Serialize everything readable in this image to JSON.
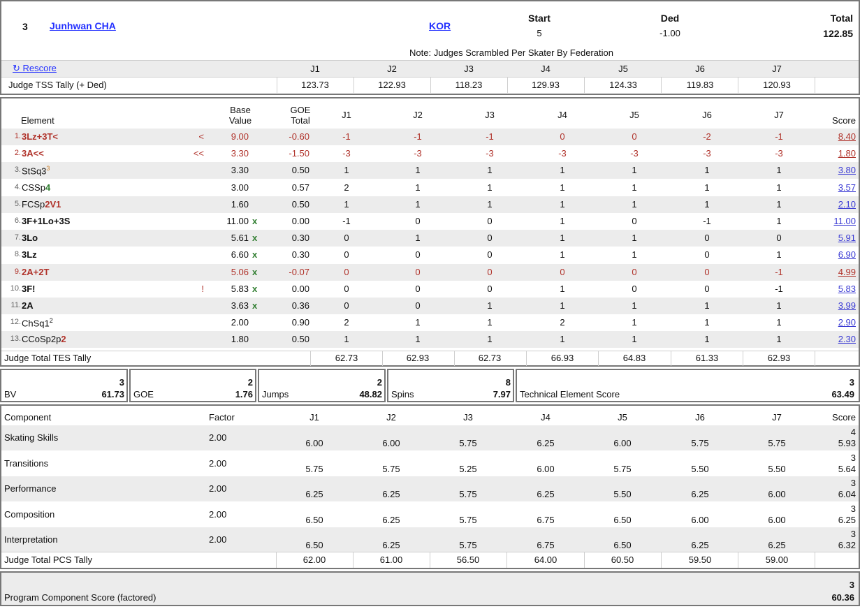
{
  "header": {
    "rank": "3",
    "name": "Junhwan CHA",
    "nation": "KOR",
    "start_label": "Start",
    "start_value": "5",
    "ded_label": "Ded",
    "ded_value": "-1.00",
    "total_label": "Total",
    "total_value": "122.85",
    "note": "Note: Judges Scrambled Per Skater By Federation",
    "rescore": "↻ Rescore",
    "judges": [
      "J1",
      "J2",
      "J3",
      "J4",
      "J5",
      "J6",
      "J7"
    ],
    "tss_label": "Judge TSS Tally (+ Ded)",
    "tss": [
      "123.73",
      "122.93",
      "118.23",
      "129.93",
      "124.33",
      "119.83",
      "120.93"
    ]
  },
  "elements": {
    "col_element": "Element",
    "col_base": "Base\nValue",
    "col_goe": "GOE\nTotal",
    "col_score": "Score",
    "judges": [
      "J1",
      "J2",
      "J3",
      "J4",
      "J5",
      "J6",
      "J7"
    ],
    "rows": [
      {
        "num": "1.",
        "name": "3Lz+3T<",
        "flag": "<",
        "bv": "9.00",
        "x": "",
        "goe": "-0.60",
        "j": [
          "-1",
          "-1",
          "-1",
          "0",
          "0",
          "-2",
          "-1"
        ],
        "score": "8.40",
        "tone": "red"
      },
      {
        "num": "2.",
        "name": "3A<<",
        "flag": "<<",
        "bv": "3.30",
        "x": "",
        "goe": "-1.50",
        "j": [
          "-3",
          "-3",
          "-3",
          "-3",
          "-3",
          "-3",
          "-3"
        ],
        "score": "1.80",
        "tone": "red"
      },
      {
        "num": "3.",
        "name": "StSq3",
        "sup": "3",
        "flag": "",
        "bv": "3.30",
        "x": "",
        "goe": "0.50",
        "j": [
          "1",
          "1",
          "1",
          "1",
          "1",
          "1",
          "1"
        ],
        "score": "3.80",
        "tone": "normal"
      },
      {
        "num": "4.",
        "name": "CSSp",
        "lvl": "4",
        "flag": "",
        "bv": "3.00",
        "x": "",
        "goe": "0.57",
        "j": [
          "2",
          "1",
          "1",
          "1",
          "1",
          "1",
          "1"
        ],
        "score": "3.57",
        "tone": "normal"
      },
      {
        "num": "5.",
        "name": "FCSp",
        "lvl": "2V1",
        "flag": "",
        "bv": "1.60",
        "x": "",
        "goe": "0.50",
        "j": [
          "1",
          "1",
          "1",
          "1",
          "1",
          "1",
          "1"
        ],
        "score": "2.10",
        "tone": "normal"
      },
      {
        "num": "6.",
        "name": "3F+1Lo+3S",
        "flag": "",
        "bv": "11.00",
        "x": "x",
        "goe": "0.00",
        "j": [
          "-1",
          "0",
          "0",
          "1",
          "0",
          "-1",
          "1"
        ],
        "score": "11.00",
        "tone": "bold"
      },
      {
        "num": "7.",
        "name": "3Lo",
        "flag": "",
        "bv": "5.61",
        "x": "x",
        "goe": "0.30",
        "j": [
          "0",
          "1",
          "0",
          "1",
          "1",
          "0",
          "0"
        ],
        "score": "5.91",
        "tone": "bold"
      },
      {
        "num": "8.",
        "name": "3Lz",
        "flag": "",
        "bv": "6.60",
        "x": "x",
        "goe": "0.30",
        "j": [
          "0",
          "0",
          "0",
          "1",
          "1",
          "0",
          "1"
        ],
        "score": "6.90",
        "tone": "bold"
      },
      {
        "num": "9.",
        "name": "2A+2T",
        "flag": "",
        "bv": "5.06",
        "x": "x",
        "goe": "-0.07",
        "j": [
          "0",
          "0",
          "0",
          "0",
          "0",
          "0",
          "-1"
        ],
        "score": "4.99",
        "tone": "red"
      },
      {
        "num": "10.",
        "name": "3F!",
        "flag": "!",
        "bv": "5.83",
        "x": "x",
        "goe": "0.00",
        "j": [
          "0",
          "0",
          "0",
          "1",
          "0",
          "0",
          "-1"
        ],
        "score": "5.83",
        "tone": "bold"
      },
      {
        "num": "11.",
        "name": "2A",
        "flag": "",
        "bv": "3.63",
        "x": "x",
        "goe": "0.36",
        "j": [
          "0",
          "0",
          "1",
          "1",
          "1",
          "1",
          "1"
        ],
        "score": "3.99",
        "tone": "bold"
      },
      {
        "num": "12.",
        "name": "ChSq1",
        "sup": "2",
        "flag": "",
        "bv": "2.00",
        "x": "",
        "goe": "0.90",
        "j": [
          "2",
          "1",
          "1",
          "2",
          "1",
          "1",
          "1"
        ],
        "score": "2.90",
        "tone": "normal"
      },
      {
        "num": "13.",
        "name": "CCoSp2p",
        "lvl": "2",
        "flag": "",
        "bv": "1.80",
        "x": "",
        "goe": "0.50",
        "j": [
          "1",
          "1",
          "1",
          "1",
          "1",
          "1",
          "1"
        ],
        "score": "2.30",
        "tone": "normal"
      }
    ],
    "tes_label": "Judge Total TES Tally",
    "tes": [
      "62.73",
      "62.93",
      "62.73",
      "66.93",
      "64.83",
      "61.33",
      "62.93"
    ]
  },
  "summary": {
    "bv": {
      "rank": "3",
      "label": "BV",
      "value": "61.73"
    },
    "goe": {
      "rank": "2",
      "label": "GOE",
      "value": "1.76"
    },
    "jumps": {
      "rank": "2",
      "label": "Jumps",
      "value": "48.82"
    },
    "spins": {
      "rank": "8",
      "label": "Spins",
      "value": "7.97"
    },
    "tes": {
      "rank": "3",
      "label": "Technical Element Score",
      "value": "63.49"
    }
  },
  "components": {
    "col_component": "Component",
    "col_factor": "Factor",
    "col_score": "Score",
    "judges": [
      "J1",
      "J2",
      "J3",
      "J4",
      "J5",
      "J6",
      "J7"
    ],
    "rows": [
      {
        "name": "Skating Skills",
        "factor": "2.00",
        "j": [
          "6.00",
          "6.00",
          "5.75",
          "6.25",
          "6.00",
          "5.75",
          "5.75"
        ],
        "rank": "4",
        "score": "5.93"
      },
      {
        "name": "Transitions",
        "factor": "2.00",
        "j": [
          "5.75",
          "5.75",
          "5.25",
          "6.00",
          "5.75",
          "5.50",
          "5.50"
        ],
        "rank": "3",
        "score": "5.64"
      },
      {
        "name": "Performance",
        "factor": "2.00",
        "j": [
          "6.25",
          "6.25",
          "5.75",
          "6.25",
          "5.50",
          "6.25",
          "6.00"
        ],
        "rank": "3",
        "score": "6.04"
      },
      {
        "name": "Composition",
        "factor": "2.00",
        "j": [
          "6.50",
          "6.25",
          "5.75",
          "6.75",
          "6.50",
          "6.00",
          "6.00"
        ],
        "rank": "3",
        "score": "6.25"
      },
      {
        "name": "Interpretation",
        "factor": "2.00",
        "j": [
          "6.50",
          "6.25",
          "5.75",
          "6.75",
          "6.50",
          "6.25",
          "6.25"
        ],
        "rank": "3",
        "score": "6.32"
      }
    ],
    "pcs_label": "Judge Total PCS Tally",
    "pcs": [
      "62.00",
      "61.00",
      "56.50",
      "64.00",
      "60.50",
      "59.50",
      "59.00"
    ]
  },
  "pcs_total": {
    "rank": "3",
    "label": "Program Component Score (factored)",
    "value": "60.36"
  },
  "colors": {
    "deduction_red": "#b0322a",
    "level_green": "#2f7d2f",
    "link_blue": "#2330ff",
    "stripe": "#ececec",
    "border": "#777777"
  }
}
